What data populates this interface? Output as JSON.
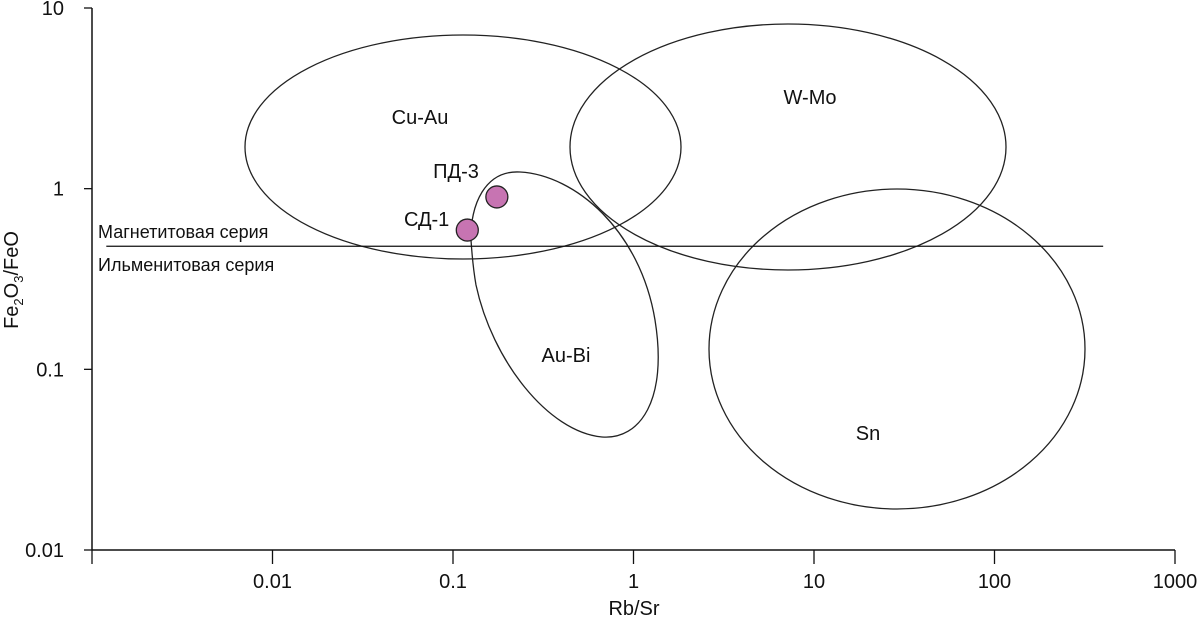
{
  "chart_data": {
    "type": "scatter",
    "xlabel": "Rb/Sr",
    "ylabel": "Fe2O3/FeO",
    "ylabel_parts": {
      "a": "Fe",
      "sub1": "2",
      "b": "O",
      "sub2": "3",
      "c": "/FeO"
    },
    "x_scale": "log",
    "y_scale": "log",
    "xlim": [
      0.001,
      1000
    ],
    "ylim": [
      0.01,
      10
    ],
    "x_ticks": [
      0.001,
      0.01,
      0.1,
      1,
      10,
      100,
      1000
    ],
    "x_tick_labels": [
      "",
      "0.01",
      "0.1",
      "1",
      "10",
      "100",
      "1000"
    ],
    "y_ticks": [
      0.01,
      0.1,
      1,
      10
    ],
    "y_tick_labels": [
      "0.01",
      "0.1",
      "1",
      "10"
    ],
    "grid": false,
    "points": [
      {
        "label": "СД-1",
        "x": 0.12,
        "y": 0.59
      },
      {
        "label": "ПД-3",
        "x": 0.175,
        "y": 0.9
      }
    ],
    "point_color": "#c774b2",
    "fields": [
      {
        "label": "Cu-Au"
      },
      {
        "label": "W-Mo"
      },
      {
        "label": "Au-Bi"
      },
      {
        "label": "Sn"
      }
    ],
    "boundary": {
      "y": 0.48,
      "x_from": 0.0012,
      "x_to": 400,
      "label_above": "Магнетитовая серия",
      "label_below": "Ильменитовая серия"
    }
  }
}
